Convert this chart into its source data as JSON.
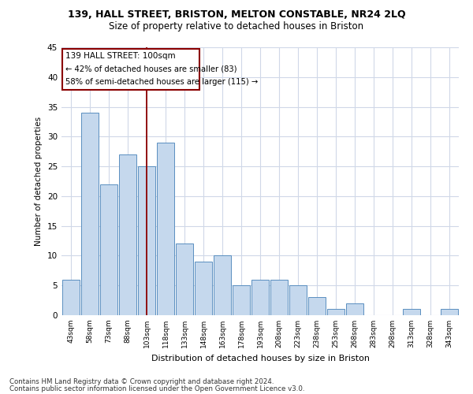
{
  "title": "139, HALL STREET, BRISTON, MELTON CONSTABLE, NR24 2LQ",
  "subtitle": "Size of property relative to detached houses in Briston",
  "xlabel": "Distribution of detached houses by size in Briston",
  "ylabel": "Number of detached properties",
  "categories": [
    "43sqm",
    "58sqm",
    "73sqm",
    "88sqm",
    "103sqm",
    "118sqm",
    "133sqm",
    "148sqm",
    "163sqm",
    "178sqm",
    "193sqm",
    "208sqm",
    "223sqm",
    "238sqm",
    "253sqm",
    "268sqm",
    "283sqm",
    "298sqm",
    "313sqm",
    "328sqm",
    "343sqm"
  ],
  "values": [
    6,
    34,
    22,
    27,
    25,
    29,
    12,
    9,
    10,
    5,
    6,
    6,
    5,
    3,
    1,
    2,
    0,
    0,
    1,
    0,
    1
  ],
  "bar_color": "#c5d8ed",
  "bar_edge_color": "#5a8fc0",
  "vline_x_index": 4,
  "vline_color": "#8b0000",
  "annotation_title": "139 HALL STREET: 100sqm",
  "annotation_line1": "← 42% of detached houses are smaller (83)",
  "annotation_line2": "58% of semi-detached houses are larger (115) →",
  "annotation_box_color": "#8b0000",
  "ylim": [
    0,
    45
  ],
  "yticks": [
    0,
    5,
    10,
    15,
    20,
    25,
    30,
    35,
    40,
    45
  ],
  "footer_line1": "Contains HM Land Registry data © Crown copyright and database right 2024.",
  "footer_line2": "Contains public sector information licensed under the Open Government Licence v3.0.",
  "background_color": "#ffffff",
  "grid_color": "#d0d8e8"
}
